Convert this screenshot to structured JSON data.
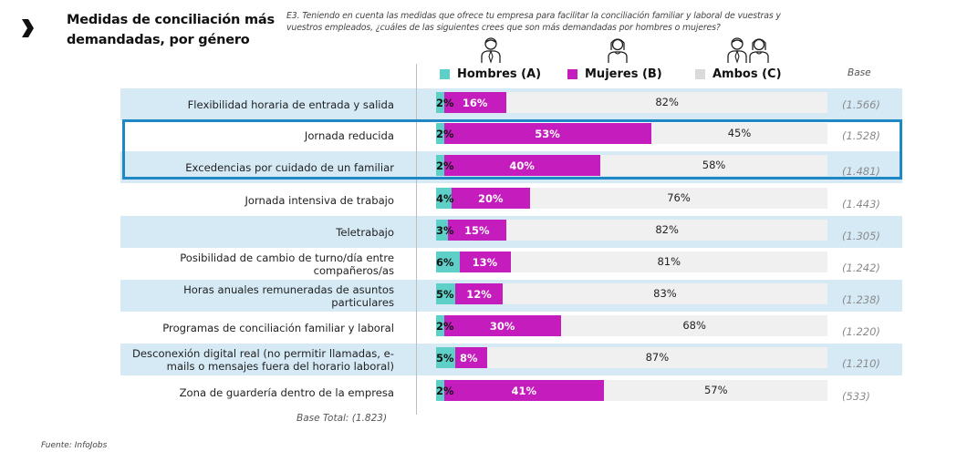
{
  "header": {
    "title_line1": "Medidas de conciliación más",
    "title_line2": "demandadas, por género",
    "question": "E3. Teniendo en cuenta las medidas que ofrece tu empresa para facilitar la conciliación familiar y laboral de vuestras y vuestros empleados, ¿cuáles de las siguientes crees que son más demandadas por hombres o mujeres?",
    "base_header": "Base"
  },
  "footer": {
    "base_total": "Base Total: (1.823)",
    "source": "Fuente: InfoJobs"
  },
  "colors": {
    "hombres": "#5fd0c8",
    "mujeres": "#c51dbd",
    "ambos": "#f0f0f0",
    "highlight": "#1f87c4",
    "row_shade": "#d6eaf6"
  },
  "chart_data": {
    "type": "bar",
    "orientation": "horizontal",
    "stacked": true,
    "title": "Medidas de conciliación más demandadas, por género",
    "xlabel": "",
    "ylabel": "",
    "xlim": [
      0,
      100
    ],
    "legend": "top",
    "series_names": [
      "Hombres (A)",
      "Mujeres (B)",
      "Ambos (C)"
    ],
    "categories": [
      "Flexibilidad horaria de entrada y salida",
      "Jornada reducida",
      "Excedencias por cuidado de un familiar",
      "Jornada intensiva de trabajo",
      "Teletrabajo",
      "Posibilidad de cambio de turno/día entre compañeros/as",
      "Horas anuales remuneradas de asuntos particulares",
      "Programas de conciliación familiar y laboral",
      "Desconexión digital real (no permitir llamadas, e-mails o mensajes fuera del horario laboral)",
      "Zona de guardería dentro de la empresa"
    ],
    "series": [
      {
        "name": "Hombres (A)",
        "values": [
          2,
          2,
          2,
          4,
          3,
          6,
          5,
          2,
          5,
          2
        ]
      },
      {
        "name": "Mujeres (B)",
        "values": [
          16,
          53,
          40,
          20,
          15,
          13,
          12,
          30,
          8,
          41
        ]
      },
      {
        "name": "Ambos (C)",
        "values": [
          82,
          45,
          58,
          76,
          82,
          81,
          83,
          68,
          87,
          57
        ]
      }
    ],
    "bases": [
      "(1.566)",
      "(1.528)",
      "(1.481)",
      "(1.443)",
      "(1.305)",
      "(1.242)",
      "(1.238)",
      "(1.220)",
      "(1.210)",
      "(533)"
    ],
    "highlighted_categories": [
      "Jornada reducida",
      "Excedencias por cuidado de un familiar"
    ],
    "base_total": "(1.823)"
  }
}
